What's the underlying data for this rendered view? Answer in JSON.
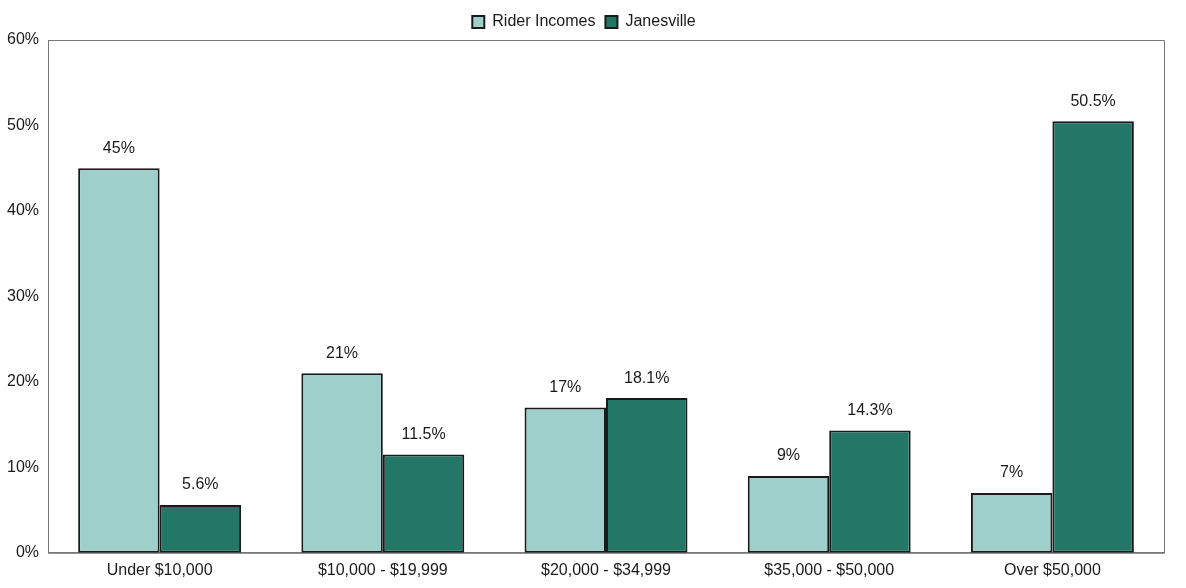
{
  "chart_data": {
    "type": "bar",
    "categories": [
      "Under $10,000",
      "$10,000 - $19,999",
      "$20,000 - $34,999",
      "$35,000 - $50,000",
      "Over $50,000"
    ],
    "series": [
      {
        "name": "Rider Incomes",
        "color": "#9fcfca",
        "values": [
          45,
          21,
          17,
          9,
          7
        ],
        "value_labels": [
          "45%",
          "21%",
          "17%",
          "9%",
          "7%"
        ]
      },
      {
        "name": "Janesville",
        "color": "#227766",
        "values": [
          5.6,
          11.5,
          18.1,
          14.3,
          50.5
        ],
        "value_labels": [
          "5.6%",
          "11.5%",
          "18.1%",
          "14.3%",
          "50.5%"
        ]
      }
    ],
    "ylim": [
      0,
      60
    ],
    "yticks": [
      {
        "value": 0,
        "label": "0%"
      },
      {
        "value": 10,
        "label": "10%"
      },
      {
        "value": 20,
        "label": "20%"
      },
      {
        "value": 30,
        "label": "30%"
      },
      {
        "value": 40,
        "label": "40%"
      },
      {
        "value": 50,
        "label": "50%"
      },
      {
        "value": 60,
        "label": "60%"
      }
    ],
    "grid": false,
    "legend": "top"
  }
}
